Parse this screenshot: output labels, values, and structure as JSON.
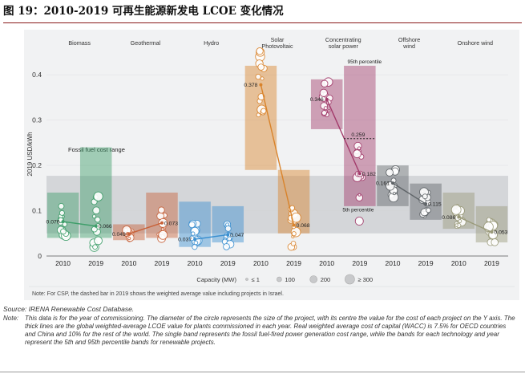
{
  "figure_title": "图 19：2010-2019 可再生能源新发电 LCOE 变化情况",
  "source": "Source: IRENA Renewable Cost Database.",
  "note_label": "Note:",
  "note_text": "This data is for the year of commissioning. The diameter of the circle represents the size of the project, with its centre the value for the cost of each project on the Y axis. The thick lines are the global weighted-average LCOE value for plants commissioned in each year. Real weighted average cost of capital (WACC) is 7.5% for OECD countries and China and 10% for the rest of the world. The single band represents the fossil fuel-fired power generation cost range, while the bands for each technology and year represent the 5th and 95th percentile bands for renewable projects.",
  "chart_data": {
    "type": "scatter",
    "ylabel": "2019 USD/kWh",
    "ylim": [
      0,
      0.45
    ],
    "yticks": [
      0,
      0.1,
      0.2,
      0.3,
      0.4
    ],
    "ytick_labels": [
      "0",
      "0.1",
      "0.2",
      "0.3",
      "0.4"
    ],
    "year_labels": [
      "2010",
      "2019"
    ],
    "fossil_band": {
      "label": "Fossil fuel cost range",
      "min": 0.05,
      "max": 0.177,
      "color": "#cfd1d4"
    },
    "technologies": [
      {
        "name": "Biomass",
        "color": "#3e9e6a",
        "band_2010": [
          0.04,
          0.14
        ],
        "band_2019": [
          0.04,
          0.24
        ],
        "avg_2010": 0.076,
        "avg_2019": 0.066,
        "label_2010": "0.076",
        "label_2019": "0.066"
      },
      {
        "name": "Geothermal",
        "color": "#c8623a",
        "band_2010": [
          0.035,
          0.07
        ],
        "band_2019": [
          0.04,
          0.14
        ],
        "avg_2010": 0.049,
        "avg_2019": 0.073,
        "label_2010": "0.049",
        "label_2019": "0.073"
      },
      {
        "name": "Hydro",
        "color": "#3a8fd0",
        "band_2010": [
          0.02,
          0.12
        ],
        "band_2019": [
          0.03,
          0.11
        ],
        "avg_2010": 0.037,
        "avg_2019": 0.047,
        "label_2010": "0.037",
        "label_2019": "0.047"
      },
      {
        "name": "Solar Photovoltaic",
        "color": "#d9832b",
        "band_2010": [
          0.19,
          0.42
        ],
        "band_2019": [
          0.05,
          0.19
        ],
        "avg_2010": 0.378,
        "avg_2019": 0.068,
        "label_2010": "0.378",
        "label_2019": "0.068"
      },
      {
        "name": "Concentrating solar power",
        "color": "#a23a6a",
        "band_2010": [
          0.28,
          0.39
        ],
        "band_2019": [
          0.11,
          0.42
        ],
        "avg_2010": 0.346,
        "avg_2019": 0.182,
        "label_2010": "0.346",
        "label_2019": "0.182",
        "dashed_2019": 0.259,
        "dashed_label": "0.259",
        "p95_label": "95th percentile",
        "p5_label": "5th percentile"
      },
      {
        "name": "Offshore wind",
        "color": "#5f6468",
        "band_2010": [
          0.11,
          0.2
        ],
        "band_2019": [
          0.08,
          0.16
        ],
        "avg_2010": 0.161,
        "avg_2019": 0.115,
        "label_2010": "0.161",
        "label_2019": "0.115"
      },
      {
        "name": "Onshore wind",
        "color": "#9a9a7a",
        "band_2010": [
          0.06,
          0.14
        ],
        "band_2019": [
          0.03,
          0.11
        ],
        "avg_2010": 0.086,
        "avg_2019": 0.053,
        "label_2010": "0.086",
        "label_2019": "0.053"
      }
    ],
    "capacity_legend": {
      "title": "Capacity (MW)",
      "items": [
        "≤ 1",
        "100",
        "200",
        "≥ 300"
      ]
    },
    "panel_note": "Note: For CSP, the dashed bar in 2019 shows the weighted average value including projects in Israel."
  }
}
